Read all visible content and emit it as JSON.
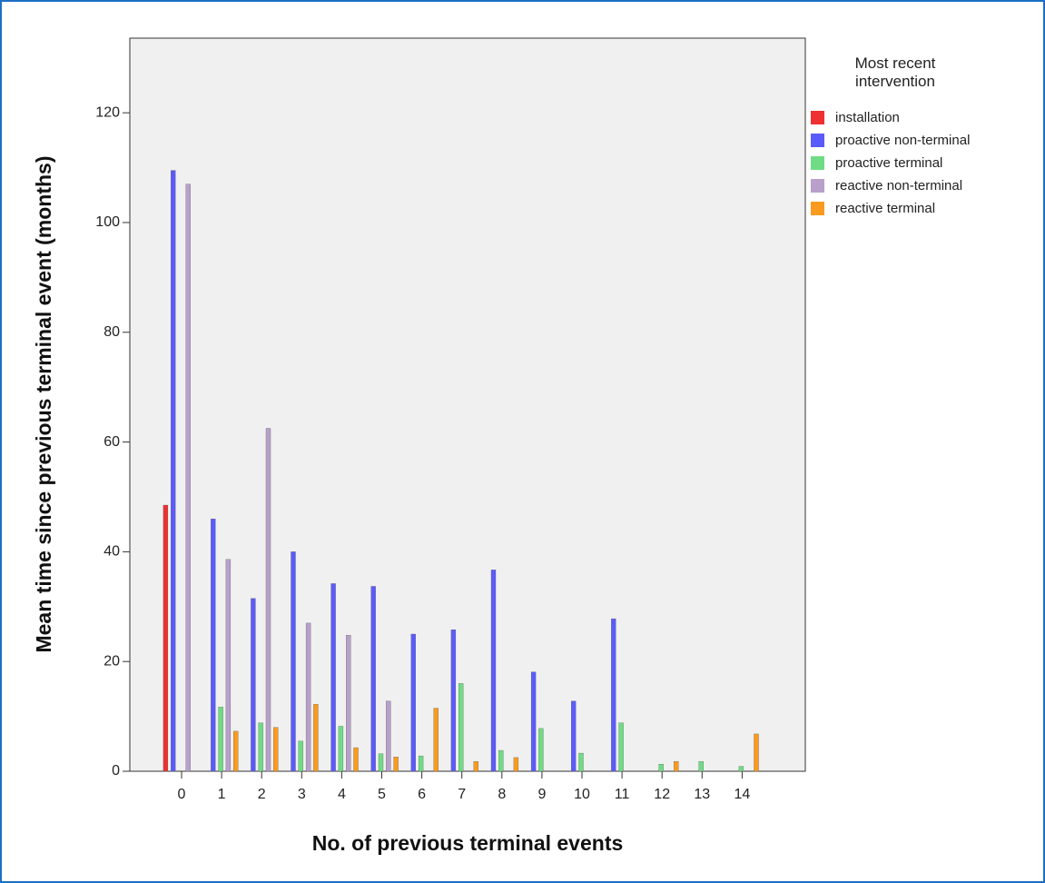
{
  "chart_data": {
    "type": "bar",
    "x_label": "No. of previous terminal events",
    "y_label": "Mean time since previous terminal event (months)",
    "legend_title": "Most recent intervention",
    "categories": [
      "0",
      "1",
      "2",
      "3",
      "4",
      "5",
      "6",
      "7",
      "8",
      "9",
      "10",
      "11",
      "12",
      "13",
      "14"
    ],
    "series": [
      {
        "name": "installation",
        "color": "#ee3030",
        "values": [
          48.5,
          null,
          null,
          null,
          null,
          null,
          null,
          null,
          null,
          null,
          null,
          null,
          null,
          null,
          null
        ]
      },
      {
        "name": "proactive non-terminal",
        "color": "#5b5bfb",
        "values": [
          109.5,
          46,
          31.5,
          40,
          34.2,
          33.7,
          25,
          25.8,
          36.7,
          18.1,
          12.8,
          27.8,
          null,
          null,
          null
        ]
      },
      {
        "name": "proactive terminal",
        "color": "#6fdc84",
        "values": [
          null,
          11.7,
          8.8,
          5.5,
          8.2,
          3.2,
          2.8,
          16,
          3.8,
          7.8,
          3.3,
          8.8,
          1.3,
          1.8,
          0.9
        ]
      },
      {
        "name": "reactive non-terminal",
        "color": "#b9a0cb",
        "values": [
          107,
          38.6,
          62.5,
          27,
          24.8,
          12.8,
          null,
          null,
          null,
          null,
          null,
          null,
          null,
          null,
          null
        ]
      },
      {
        "name": "reactive terminal",
        "color": "#f99b1e",
        "values": [
          null,
          7.3,
          8,
          12.2,
          4.3,
          2.6,
          11.5,
          1.8,
          2.5,
          null,
          null,
          null,
          1.8,
          null,
          6.8
        ]
      }
    ],
    "ylim": [
      0,
      133.6
    ],
    "yticks": [
      0,
      20,
      40,
      60,
      80,
      100,
      120
    ],
    "legend_position": "right"
  }
}
